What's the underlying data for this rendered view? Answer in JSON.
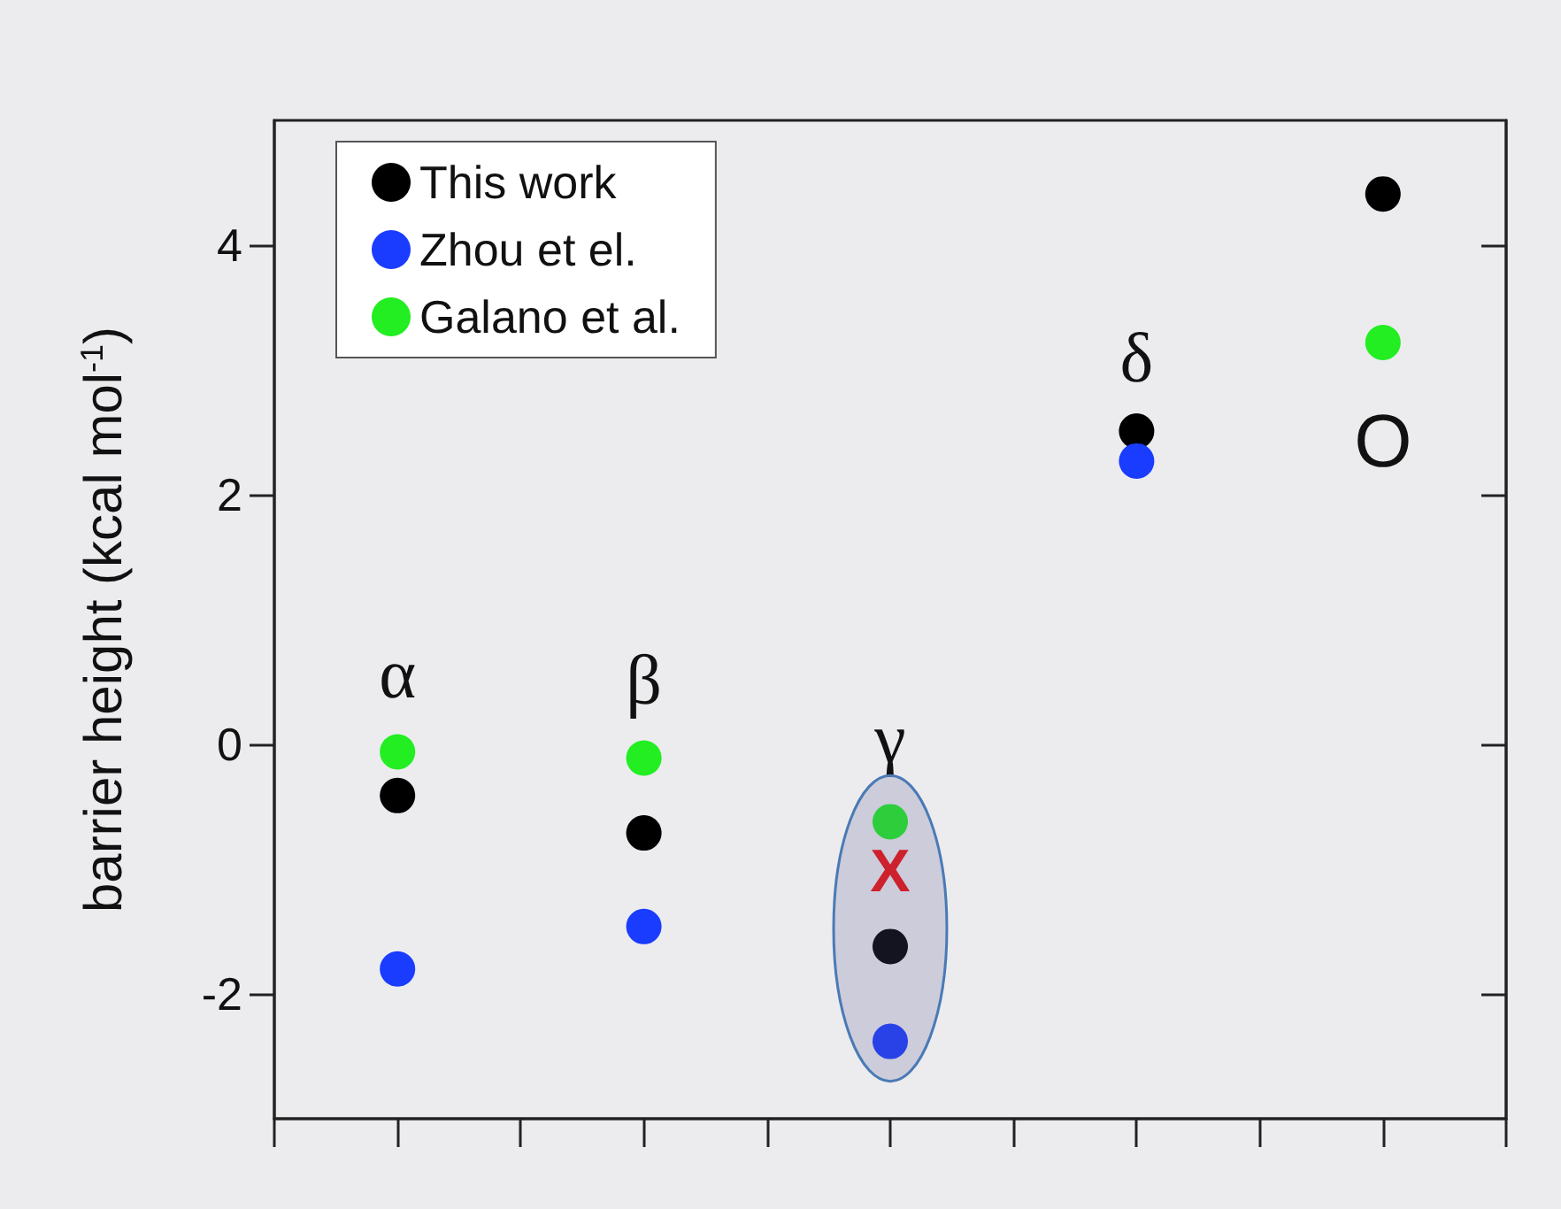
{
  "chart_data": {
    "type": "scatter",
    "ylabel": "barrier height (kcal mol$^{-1}$)",
    "categories": [
      null,
      null,
      null,
      null,
      null
    ],
    "ylim": [
      -3,
      5
    ],
    "yticks": [
      -2,
      0,
      2,
      4
    ],
    "tick_labels": "y",
    "marker": "circle",
    "grid": false,
    "legend": "top left",
    "series": [
      {
        "name": "This work",
        "color": "#000000",
        "values": [
          -0.41,
          -0.71,
          -1.62,
          2.51,
          4.41
        ]
      },
      {
        "name": "Zhou et el.",
        "color": "#1a3cff",
        "values": [
          -1.8,
          -1.46,
          -2.38,
          2.27,
          null
        ]
      },
      {
        "name": "Galano et al.",
        "color": "#22ee22",
        "values": [
          -0.06,
          -0.11,
          -0.62,
          null,
          3.22
        ]
      }
    ],
    "annotations": [
      "α",
      "β",
      "γ",
      "δ",
      "O",
      "X"
    ]
  }
}
